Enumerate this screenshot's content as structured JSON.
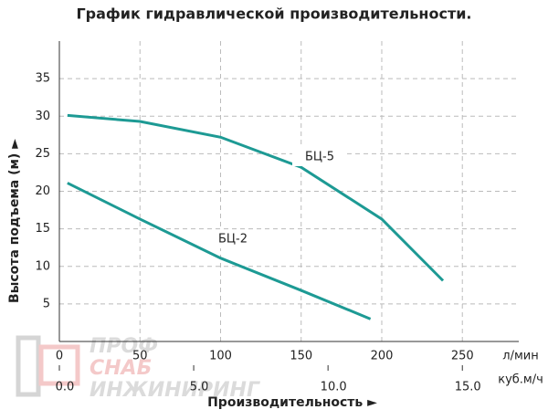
{
  "chart_data": {
    "type": "line",
    "title": "График гидравлической производительности.",
    "ylabel": "Высота подъема (м) ►",
    "xlabel": "Производительность ►",
    "x_unit": "л/мин",
    "x2_unit": "куб.м/ч",
    "xlim": [
      0,
      285
    ],
    "xticks": [
      0,
      50,
      100,
      150,
      200,
      250
    ],
    "x2lim": [
      0,
      17.1
    ],
    "x2ticks": [
      {
        "value": 0,
        "label": "0.0"
      },
      {
        "value": 5,
        "label": "5.0"
      },
      {
        "value": 10,
        "label": "10.0"
      },
      {
        "value": 15,
        "label": "15.0"
      }
    ],
    "ylim": [
      0,
      40
    ],
    "yticks": [
      5,
      10,
      15,
      20,
      25,
      30,
      35
    ],
    "grid": true,
    "series": [
      {
        "name": "БЦ-5",
        "color": "#1d9a94",
        "x": [
          5,
          50,
          100,
          150,
          200,
          238
        ],
        "values": [
          30.1,
          29.3,
          27.2,
          23.2,
          16.3,
          8.1
        ]
      },
      {
        "name": "БЦ-2",
        "color": "#1d9a94",
        "x": [
          5,
          50,
          100,
          150,
          193
        ],
        "values": [
          21.1,
          16.3,
          11.1,
          6.8,
          3.0
        ]
      }
    ],
    "watermark": [
      "ПРОФ",
      "СНАБ",
      "ИНЖИНИРИНГ"
    ]
  }
}
